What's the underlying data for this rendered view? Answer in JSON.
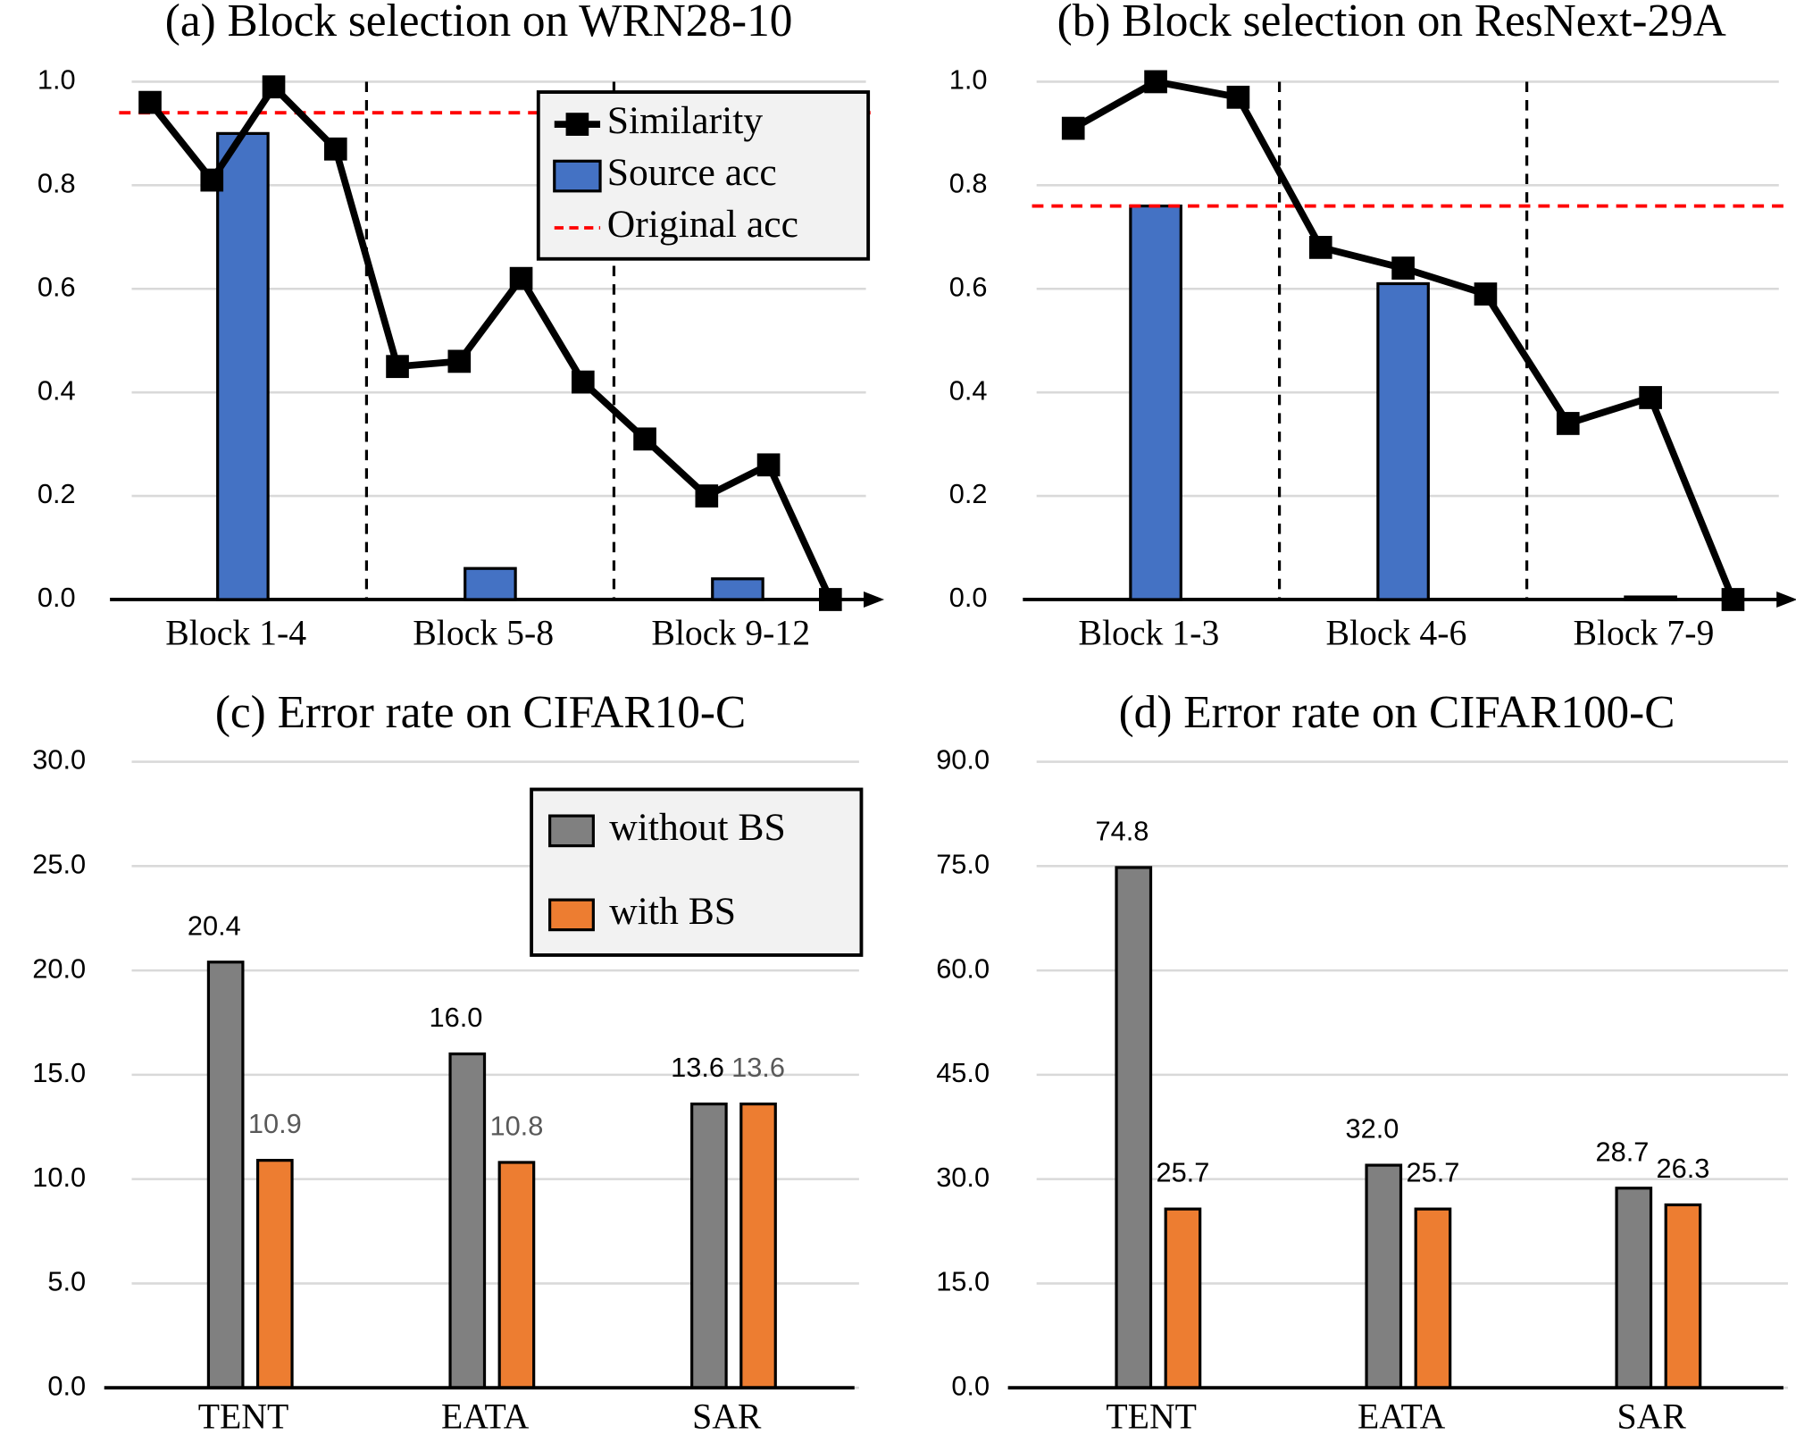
{
  "chart_data": [
    {
      "type": "bar_line",
      "title": "(a) Block selection on WRN28-10",
      "categories": [
        "Block 1-4",
        "Block 5-8",
        "Block 9-12"
      ],
      "series": [
        {
          "name": "Similarity",
          "color": "#000000",
          "type": "line",
          "values": [
            [
              0.96,
              0.81,
              0.99,
              0.87
            ],
            [
              0.45,
              0.46,
              0.62,
              0.42
            ],
            [
              0.31,
              0.2,
              0.26,
              0.0
            ]
          ]
        },
        {
          "name": "Source acc",
          "color": "#4472c4",
          "type": "bar",
          "values": [
            0.9,
            0.06,
            0.04
          ]
        }
      ],
      "reference_lines": [
        {
          "name": "Original acc",
          "color": "#ff0000",
          "value": 0.94
        }
      ],
      "ylim": [
        0,
        1
      ],
      "yticks": [
        {
          "value": 0,
          "label": "0.0"
        },
        0.2,
        0.4,
        0.6,
        0.8,
        {
          "value": 1,
          "label": "1.0"
        }
      ],
      "grid": true,
      "legend": "upper right"
    },
    {
      "type": "bar_line",
      "title": "(b) Block selection on ResNext-29A",
      "categories": [
        "Block 1-3",
        "Block 4-6",
        "Block 7-9"
      ],
      "series": [
        {
          "name": "Similarity",
          "color": "#000000",
          "type": "line",
          "values": [
            [
              0.91,
              1.0,
              0.97
            ],
            [
              0.68,
              0.64,
              0.59
            ],
            [
              0.34,
              0.39,
              0.0
            ]
          ]
        },
        {
          "name": "Source acc",
          "color": "#4472c4",
          "type": "bar",
          "values": [
            0.76,
            0.61,
            0.005
          ]
        }
      ],
      "reference_lines": [
        {
          "name": "Original acc",
          "color": "#ff0000",
          "value": 0.76
        }
      ],
      "ylim": [
        0,
        1
      ],
      "yticks": [
        {
          "value": 0,
          "label": "0.0"
        },
        0.2,
        0.4,
        0.6,
        0.8,
        {
          "value": 1,
          "label": "1.0"
        }
      ],
      "grid": true
    },
    {
      "type": "bar",
      "title": "(c) Error rate on CIFAR10-C",
      "categories": [
        "TENT",
        "EATA",
        "SAR"
      ],
      "series": [
        {
          "name": "without BS",
          "color": "#808080",
          "values": [
            20.4,
            16.0,
            13.6
          ],
          "value_labels": [
            "20.4",
            "16.0",
            "13.6"
          ],
          "label_color": "#000000"
        },
        {
          "name": "with BS",
          "color": "#ed7d31",
          "values": [
            10.9,
            10.8,
            13.6
          ],
          "value_labels": [
            "10.9",
            "10.8",
            "13.6"
          ],
          "label_color": "#595959"
        }
      ],
      "ylim": [
        0,
        30
      ],
      "yticks": [
        {
          "value": 0,
          "label": "0.0"
        },
        {
          "value": 5,
          "label": "5.0"
        },
        {
          "value": 10,
          "label": "10.0"
        },
        {
          "value": 15,
          "label": "15.0"
        },
        {
          "value": 20,
          "label": "20.0"
        },
        {
          "value": 25,
          "label": "25.0"
        },
        {
          "value": 30,
          "label": "30.0"
        }
      ],
      "grid": true,
      "legend": "upper right"
    },
    {
      "type": "bar",
      "title": "(d) Error rate on CIFAR100-C",
      "categories": [
        "TENT",
        "EATA",
        "SAR"
      ],
      "series": [
        {
          "name": "without BS",
          "color": "#808080",
          "values": [
            74.8,
            32.0,
            28.7
          ],
          "value_labels": [
            "74.8",
            "32.0",
            "28.7"
          ],
          "label_color": "#000000"
        },
        {
          "name": "with BS",
          "color": "#ed7d31",
          "values": [
            25.7,
            25.7,
            26.3
          ],
          "value_labels": [
            "25.7",
            "25.7",
            "26.3"
          ],
          "label_color": "#000000"
        }
      ],
      "ylim": [
        0,
        90
      ],
      "yticks": [
        {
          "value": 0,
          "label": "0.0"
        },
        {
          "value": 15,
          "label": "15.0"
        },
        {
          "value": 30,
          "label": "30.0"
        },
        {
          "value": 45,
          "label": "45.0"
        },
        {
          "value": 60,
          "label": "60.0"
        },
        {
          "value": 75,
          "label": "75.0"
        },
        {
          "value": 90,
          "label": "90.0"
        }
      ],
      "grid": true
    }
  ]
}
